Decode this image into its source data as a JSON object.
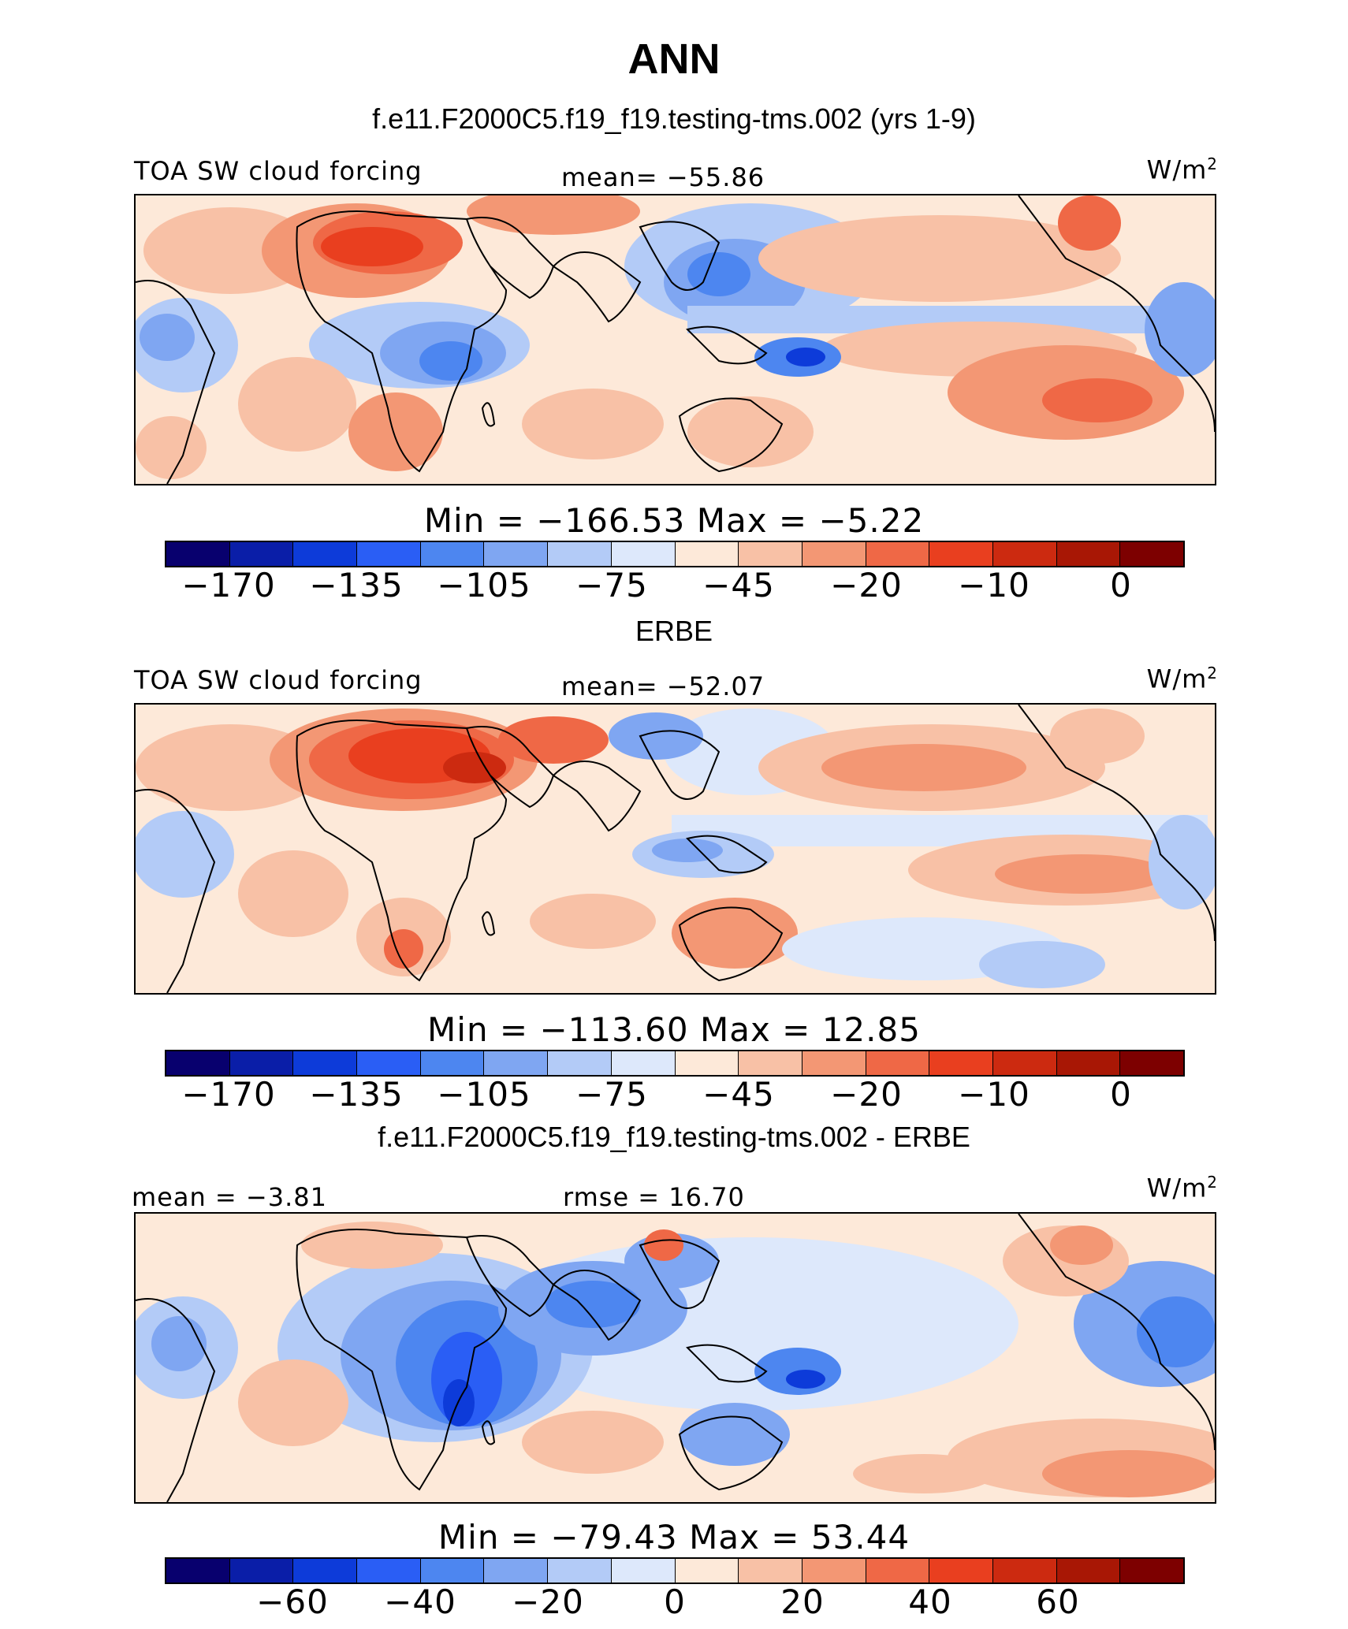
{
  "figure": {
    "title": "ANN"
  },
  "colors": {
    "palette": [
      "#08006e",
      "#0a1ea8",
      "#0d3bd9",
      "#2a5ef5",
      "#4d86f0",
      "#7fa6f2",
      "#b3cbf7",
      "#dde8fb",
      "#fde9d9",
      "#f8c1a6",
      "#f39774",
      "#ef6846",
      "#e93f1f",
      "#cc2a10",
      "#a81705",
      "#7d0000"
    ],
    "land_outline": "#000000"
  },
  "panels": [
    {
      "title": "f.e11.F2000C5.f19_f19.testing-tms.002 (yrs 1-9)",
      "left_text": "TOA SW cloud forcing",
      "center_text": "mean= −55.86",
      "units": "W/m",
      "units_sup": "2",
      "minmax": "Min  =  −166.53  Max  =   −5.22",
      "colorbar_ticks": [
        "−170",
        "−135",
        "−105",
        "−75",
        "−45",
        "−20",
        "−10",
        "0"
      ]
    },
    {
      "title": "ERBE",
      "left_text": "TOA SW cloud forcing",
      "center_text": "mean= −52.07",
      "units": "W/m",
      "units_sup": "2",
      "minmax": "Min  =  −113.60  Max  =   12.85",
      "colorbar_ticks": [
        "−170",
        "−135",
        "−105",
        "−75",
        "−45",
        "−20",
        "−10",
        "0"
      ]
    },
    {
      "title": "f.e11.F2000C5.f19_f19.testing-tms.002 - ERBE",
      "left_text": "mean =   −3.81",
      "center_text": "rmse =   16.70",
      "units": "W/m",
      "units_sup": "2",
      "minmax": "Min  =  −79.43  Max  =   53.44",
      "colorbar_ticks": [
        "−60",
        "−40",
        "−20",
        "0",
        "20",
        "40",
        "60"
      ]
    }
  ]
}
